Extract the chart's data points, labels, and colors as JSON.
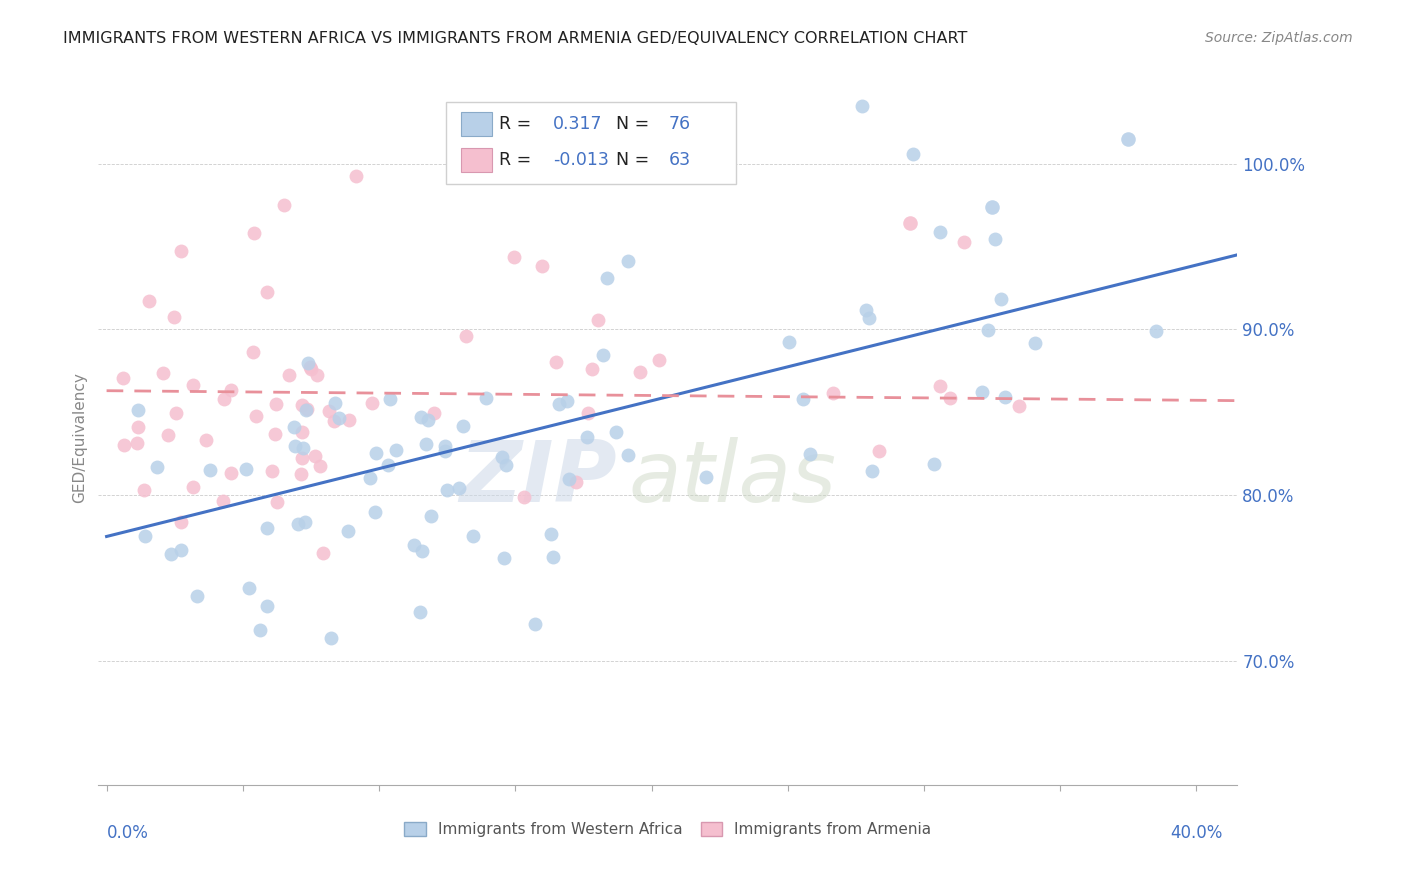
{
  "title": "IMMIGRANTS FROM WESTERN AFRICA VS IMMIGRANTS FROM ARMENIA GED/EQUIVALENCY CORRELATION CHART",
  "source": "Source: ZipAtlas.com",
  "ylabel": "GED/Equivalency",
  "ytick_vals": [
    0.7,
    0.8,
    0.9,
    1.0
  ],
  "ytick_labels": [
    "70.0%",
    "80.0%",
    "90.0%",
    "100.0%"
  ],
  "ymin": 0.625,
  "ymax": 1.045,
  "xmin": -0.003,
  "xmax": 0.415,
  "r_blue": "0.317",
  "n_blue": "76",
  "r_pink": "-0.013",
  "n_pink": "63",
  "color_blue": "#b8d0e8",
  "color_pink": "#f5bfcf",
  "line_blue": "#4472c4",
  "line_pink": "#e8909a",
  "legend_label_blue": "Immigrants from Western Africa",
  "legend_label_pink": "Immigrants from Armenia",
  "blue_line_x0": 0.0,
  "blue_line_x1": 0.415,
  "blue_line_y0": 0.775,
  "blue_line_y1": 0.945,
  "pink_line_x0": 0.0,
  "pink_line_x1": 0.415,
  "pink_line_y0": 0.863,
  "pink_line_y1": 0.857,
  "watermark_zip": "ZIP",
  "watermark_atlas": "atlas",
  "title_fontsize": 11.5,
  "source_fontsize": 10,
  "tick_fontsize": 12,
  "ylabel_fontsize": 11
}
